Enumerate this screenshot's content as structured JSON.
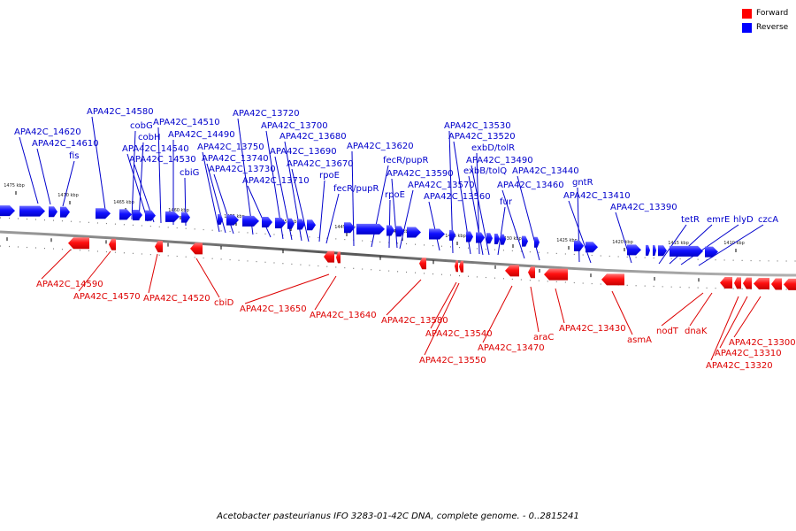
{
  "legend": [
    {
      "label": "Forward",
      "color": "#ff0000"
    },
    {
      "label": "Reverse",
      "color": "#0000ff"
    }
  ],
  "caption": "Acetobacter pasteurianus IFO 3283-01-42C DNA, complete genome. - 0..2815241",
  "kbp_ticks": [
    "1475 kbp",
    "1470 kbp",
    "1465 kbp",
    "1460 kbp",
    "1455 kbp",
    "1450 kbp",
    "1445 kbp",
    "1440 kbp",
    "1435 kbp",
    "1430 kbp",
    "1425 kbp",
    "1420 kbp",
    "1415 kbp",
    "1410 kbp"
  ],
  "reverse_genes": [
    "APA42C_14620",
    "APA42C_14610",
    "fis",
    "APA42C_14580",
    "cobG",
    "cobH",
    "APA42C_14540",
    "APA42C_14530",
    "APA42C_14510",
    "APA42C_14490",
    "cbiG",
    "APA42C_13750",
    "APA42C_13740",
    "APA42C_13730",
    "APA42C_13720",
    "APA42C_13710",
    "APA42C_13700",
    "APA42C_13690",
    "APA42C_13680",
    "APA42C_13670",
    "rpoE",
    "fecR/pupR",
    "APA42C_13620",
    "fecR/pupR",
    "rpoE",
    "APA42C_13590",
    "APA42C_13570",
    "APA42C_13560",
    "APA42C_13530",
    "APA42C_13520",
    "exbD/tolR",
    "exbB/tolQ",
    "APA42C_13490",
    "fur",
    "APA42C_13460",
    "APA42C_13440",
    "gntR",
    "APA42C_13410",
    "APA42C_13390",
    "tetR",
    "emrE",
    "hlyD",
    "czcA"
  ],
  "forward_genes": [
    "APA42C_14590",
    "APA42C_14570",
    "APA42C_14520",
    "cbiD",
    "APA42C_13650",
    "APA42C_13640",
    "APA42C_13580",
    "APA42C_13540",
    "APA42C_13550",
    "APA42C_13470",
    "araC",
    "APA42C_13430",
    "asmA",
    "nodT",
    "dnaK",
    "APA42C_13300",
    "APA42C_13310",
    "APA42C_13320"
  ]
}
